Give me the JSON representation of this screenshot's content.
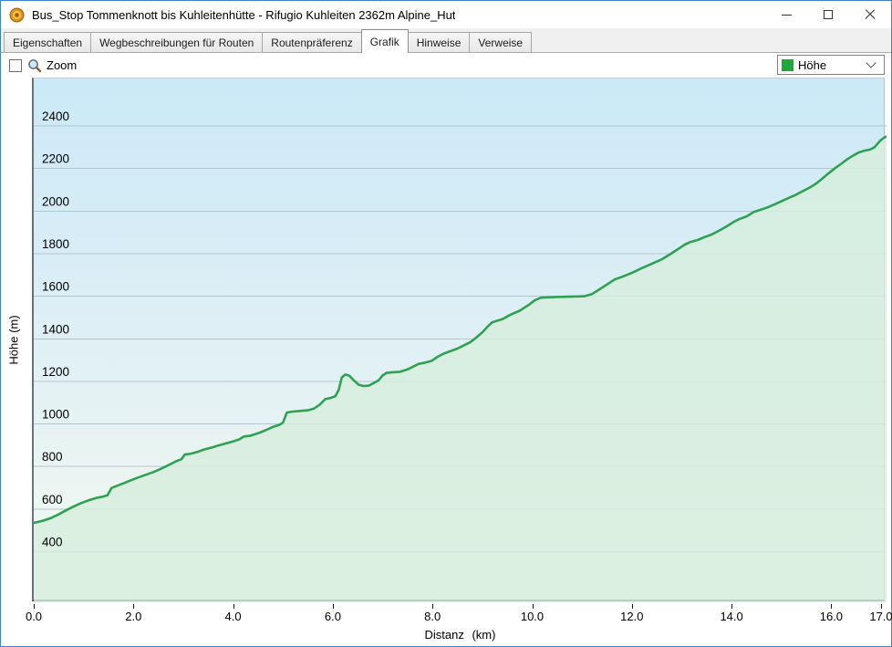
{
  "window": {
    "title": "Bus_Stop Tommenknott bis Kuhleitenhütte - Rifugio Kuhleiten 2362m Alpine_Hut",
    "controls": {
      "minimize": "minimize",
      "maximize": "maximize",
      "close": "close"
    }
  },
  "tabs": [
    {
      "label": "Eigenschaften",
      "active": false
    },
    {
      "label": "Wegbeschreibungen für Routen",
      "active": false
    },
    {
      "label": "Routenpräferenz",
      "active": false
    },
    {
      "label": "Grafik",
      "active": true
    },
    {
      "label": "Hinweise",
      "active": false
    },
    {
      "label": "Verweise",
      "active": false
    }
  ],
  "toolbar": {
    "zoom_label": "Zoom",
    "zoom_checked": false,
    "magnifier_icon": "magnifier"
  },
  "legend": {
    "selected": "Höhe",
    "swatch_color": "#1ea73c"
  },
  "chart_data": {
    "type": "area",
    "title": "",
    "xlabel": "Distanz (km)",
    "ylabel": "Höhe (m)",
    "x_ticks": [
      0,
      2,
      4,
      6,
      8,
      10,
      12,
      14,
      16,
      17
    ],
    "x_tick_labels": [
      "0.0",
      "2.0",
      "4.0",
      "6.0",
      "8.0",
      "10.0",
      "12.0",
      "14.0",
      "16.0",
      "17.0"
    ],
    "y_ticks": [
      400,
      600,
      800,
      1000,
      1200,
      1400,
      1600,
      1800,
      2000,
      2200,
      2400
    ],
    "y_tick_labels": [
      "400",
      "600",
      "800",
      "1000",
      "1200",
      "1400",
      "1600",
      "1800",
      "2000",
      "2200",
      "2400"
    ],
    "xlim": [
      0,
      17.1
    ],
    "ylim": [
      162,
      2623
    ],
    "grid": "horizontal",
    "legend_position": "dropdown-top-right",
    "line_color": "#2ea152",
    "fill_color": "#d7eedd",
    "grid_color": "#b4c6cd",
    "bg_gradient_top": "#cbe9f7",
    "bg_gradient_bottom": "#f2f9f2",
    "series": [
      {
        "name": "Höhe",
        "points": [
          [
            0.0,
            535
          ],
          [
            0.1,
            540
          ],
          [
            0.2,
            546
          ],
          [
            0.35,
            558
          ],
          [
            0.5,
            575
          ],
          [
            0.65,
            594
          ],
          [
            0.8,
            612
          ],
          [
            0.95,
            628
          ],
          [
            1.1,
            641
          ],
          [
            1.25,
            652
          ],
          [
            1.38,
            658
          ],
          [
            1.48,
            665
          ],
          [
            1.56,
            699
          ],
          [
            1.68,
            710
          ],
          [
            1.82,
            723
          ],
          [
            2.0,
            740
          ],
          [
            2.2,
            757
          ],
          [
            2.4,
            774
          ],
          [
            2.55,
            789
          ],
          [
            2.7,
            806
          ],
          [
            2.85,
            824
          ],
          [
            2.96,
            834
          ],
          [
            3.03,
            856
          ],
          [
            3.15,
            860
          ],
          [
            3.28,
            868
          ],
          [
            3.42,
            880
          ],
          [
            3.55,
            888
          ],
          [
            3.7,
            898
          ],
          [
            3.85,
            908
          ],
          [
            4.0,
            918
          ],
          [
            4.12,
            927
          ],
          [
            4.22,
            941
          ],
          [
            4.35,
            945
          ],
          [
            4.5,
            956
          ],
          [
            4.65,
            970
          ],
          [
            4.8,
            986
          ],
          [
            4.92,
            995
          ],
          [
            5.0,
            1006
          ],
          [
            5.08,
            1054
          ],
          [
            5.2,
            1058
          ],
          [
            5.35,
            1061
          ],
          [
            5.5,
            1064
          ],
          [
            5.62,
            1072
          ],
          [
            5.75,
            1093
          ],
          [
            5.85,
            1117
          ],
          [
            5.97,
            1123
          ],
          [
            6.05,
            1130
          ],
          [
            6.12,
            1160
          ],
          [
            6.18,
            1218
          ],
          [
            6.25,
            1232
          ],
          [
            6.33,
            1227
          ],
          [
            6.42,
            1205
          ],
          [
            6.52,
            1184
          ],
          [
            6.62,
            1178
          ],
          [
            6.72,
            1180
          ],
          [
            6.82,
            1192
          ],
          [
            6.92,
            1205
          ],
          [
            7.0,
            1228
          ],
          [
            7.08,
            1240
          ],
          [
            7.2,
            1243
          ],
          [
            7.35,
            1245
          ],
          [
            7.5,
            1256
          ],
          [
            7.62,
            1270
          ],
          [
            7.72,
            1282
          ],
          [
            7.85,
            1288
          ],
          [
            7.98,
            1296
          ],
          [
            8.1,
            1315
          ],
          [
            8.22,
            1330
          ],
          [
            8.35,
            1341
          ],
          [
            8.5,
            1354
          ],
          [
            8.62,
            1368
          ],
          [
            8.75,
            1383
          ],
          [
            8.85,
            1400
          ],
          [
            9.0,
            1430
          ],
          [
            9.1,
            1456
          ],
          [
            9.2,
            1478
          ],
          [
            9.4,
            1492
          ],
          [
            9.57,
            1514
          ],
          [
            9.75,
            1532
          ],
          [
            9.93,
            1559
          ],
          [
            10.06,
            1582
          ],
          [
            10.18,
            1593
          ],
          [
            10.45,
            1596
          ],
          [
            10.75,
            1598
          ],
          [
            11.05,
            1600
          ],
          [
            11.2,
            1610
          ],
          [
            11.35,
            1632
          ],
          [
            11.5,
            1655
          ],
          [
            11.65,
            1678
          ],
          [
            11.78,
            1689
          ],
          [
            11.92,
            1702
          ],
          [
            12.05,
            1715
          ],
          [
            12.2,
            1732
          ],
          [
            12.4,
            1752
          ],
          [
            12.6,
            1773
          ],
          [
            12.8,
            1802
          ],
          [
            12.95,
            1825
          ],
          [
            13.08,
            1845
          ],
          [
            13.18,
            1855
          ],
          [
            13.32,
            1864
          ],
          [
            13.46,
            1878
          ],
          [
            13.6,
            1890
          ],
          [
            13.75,
            1908
          ],
          [
            13.9,
            1928
          ],
          [
            14.05,
            1950
          ],
          [
            14.15,
            1962
          ],
          [
            14.3,
            1975
          ],
          [
            14.45,
            1996
          ],
          [
            14.58,
            2006
          ],
          [
            14.72,
            2017
          ],
          [
            14.86,
            2031
          ],
          [
            15.0,
            2046
          ],
          [
            15.15,
            2062
          ],
          [
            15.28,
            2075
          ],
          [
            15.43,
            2094
          ],
          [
            15.55,
            2108
          ],
          [
            15.7,
            2130
          ],
          [
            15.82,
            2152
          ],
          [
            15.95,
            2178
          ],
          [
            16.08,
            2202
          ],
          [
            16.2,
            2222
          ],
          [
            16.33,
            2245
          ],
          [
            16.45,
            2262
          ],
          [
            16.55,
            2275
          ],
          [
            16.65,
            2283
          ],
          [
            16.78,
            2289
          ],
          [
            16.87,
            2300
          ],
          [
            16.98,
            2330
          ],
          [
            17.07,
            2347
          ],
          [
            17.14,
            2352
          ]
        ]
      }
    ]
  }
}
